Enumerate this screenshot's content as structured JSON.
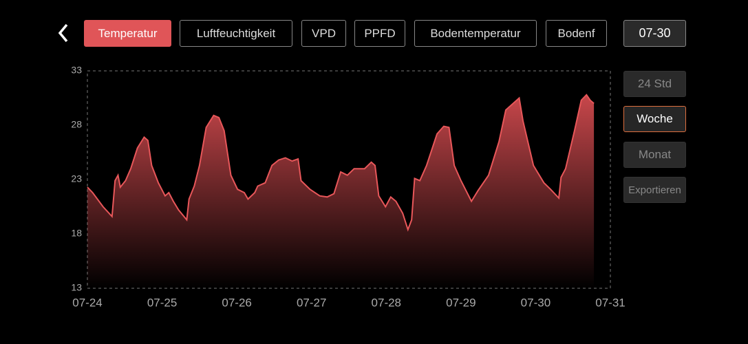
{
  "tabs": [
    "Temperatur",
    "Luftfeuchtigkeit",
    "VPD",
    "PPFD",
    "Bodentemperatur",
    "Bodenf"
  ],
  "date": "07-30",
  "range_buttons": [
    "24 Std",
    "Woche",
    "Monat",
    "Exportieren"
  ],
  "chart_data": {
    "type": "area",
    "color": "#e8575a",
    "x": [
      0,
      0.07,
      0.21,
      0.33,
      0.37,
      0.41,
      0.44,
      0.51,
      0.58,
      0.67,
      0.76,
      0.81,
      0.86,
      0.95,
      1.04,
      1.09,
      1.15,
      1.22,
      1.33,
      1.36,
      1.43,
      1.5,
      1.59,
      1.69,
      1.76,
      1.83,
      1.92,
      2.01,
      2.1,
      2.15,
      2.24,
      2.28,
      2.38,
      2.47,
      2.56,
      2.65,
      2.74,
      2.82,
      2.86,
      2.98,
      3.11,
      3.21,
      3.3,
      3.39,
      3.48,
      3.57,
      3.71,
      3.8,
      3.85,
      3.9,
      3.99,
      4.06,
      4.13,
      4.22,
      4.29,
      4.34,
      4.38,
      4.45,
      4.54,
      4.68,
      4.77,
      4.84,
      4.91,
      5,
      5.14,
      5.23,
      5.37,
      5.51,
      5.6,
      5.78,
      5.83,
      5.97,
      6.11,
      6.2,
      6.31,
      6.34,
      6.4,
      6.52,
      6.61,
      6.68,
      6.73,
      6.78
    ],
    "values": [
      22.3,
      21.8,
      20.5,
      19.6,
      22.9,
      23.4,
      22.3,
      22.9,
      24,
      25.9,
      26.9,
      26.6,
      24.3,
      22.7,
      21.5,
      21.8,
      21,
      20.2,
      19.3,
      21.2,
      22.4,
      24.3,
      27.8,
      28.9,
      28.7,
      27.5,
      23.4,
      22.1,
      21.8,
      21.2,
      21.8,
      22.4,
      22.7,
      24.3,
      24.8,
      25,
      24.7,
      24.9,
      22.9,
      22.1,
      21.5,
      21.4,
      21.7,
      23.7,
      23.4,
      24,
      24,
      24.6,
      24.3,
      21.5,
      20.5,
      21.4,
      21,
      19.9,
      18.4,
      19.3,
      23.1,
      22.9,
      24.3,
      27.2,
      27.9,
      27.8,
      24.3,
      22.9,
      21,
      22,
      23.4,
      26.5,
      29.4,
      30.5,
      28.4,
      24.3,
      22.7,
      22.1,
      21.3,
      23.2,
      24,
      27.5,
      30.3,
      30.8,
      30.3,
      30
    ],
    "xlim": [
      0,
      7
    ],
    "xticks": [
      {
        "value": 0,
        "label": "07-24"
      },
      {
        "value": 1,
        "label": "07-25"
      },
      {
        "value": 2,
        "label": "07-26"
      },
      {
        "value": 3,
        "label": "07-27"
      },
      {
        "value": 4,
        "label": "07-28"
      },
      {
        "value": 5,
        "label": "07-29"
      },
      {
        "value": 6,
        "label": "07-30"
      },
      {
        "value": 7,
        "label": "07-31"
      }
    ],
    "ylim": [
      13,
      33
    ],
    "yticks": [
      13,
      18,
      23,
      28,
      33
    ]
  }
}
